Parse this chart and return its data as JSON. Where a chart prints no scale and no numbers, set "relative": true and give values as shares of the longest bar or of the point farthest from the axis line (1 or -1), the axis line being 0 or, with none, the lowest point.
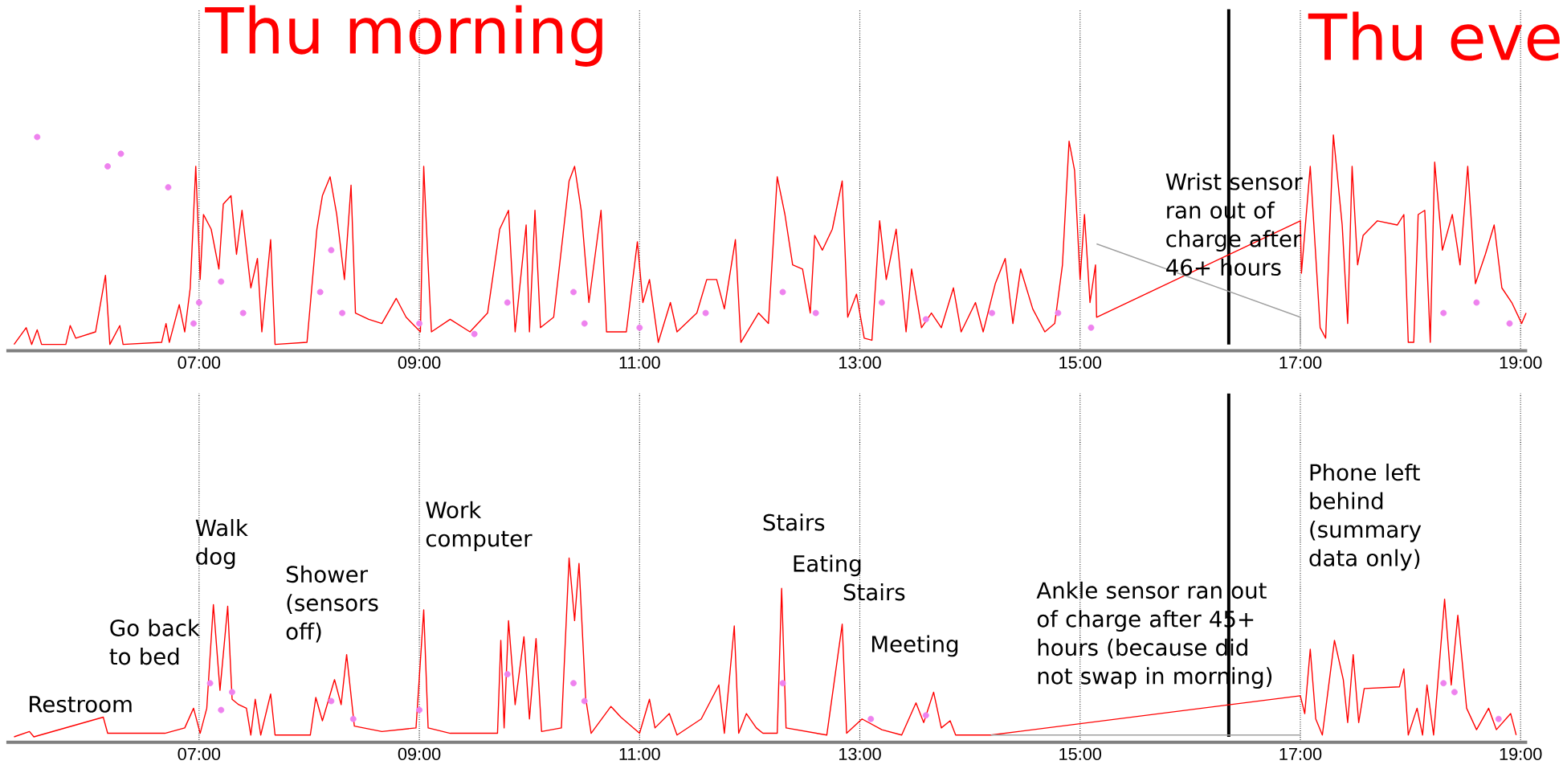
{
  "chart_data": [
    {
      "type": "line",
      "relative": true,
      "title": "Thu morning",
      "xlim": [
        5.25,
        19.06
      ],
      "grid": "x",
      "xticks": [
        {
          "value": 7,
          "label": "07:00"
        },
        {
          "value": 9,
          "label": "09:00"
        },
        {
          "value": 11,
          "label": "11:00"
        },
        {
          "value": 13,
          "label": "13:00"
        },
        {
          "value": 15,
          "label": "15:00"
        },
        {
          "value": 17,
          "label": "17:00"
        },
        {
          "value": 19,
          "label": "19:00"
        }
      ],
      "ref_lines": [
        {
          "axis": "x",
          "value": 16.35,
          "color": "#000000"
        }
      ],
      "annotations": [
        "Thu eve",
        "Wrist sensor ran out of charge after 46+ hours"
      ],
      "series": [
        {
          "type": "line",
          "color": "#ff0000",
          "x": [
            5.32,
            5.43,
            5.48,
            5.53,
            5.57,
            5.79,
            5.83,
            5.88,
            6.06,
            6.15,
            6.19,
            6.28,
            6.31,
            6.66,
            6.7,
            6.73,
            6.82,
            6.87,
            6.92,
            6.97,
            7.01,
            7.04,
            7.11,
            7.18,
            7.22,
            7.29,
            7.34,
            7.39,
            7.47,
            7.53,
            7.57,
            7.65,
            7.69,
            7.98,
            8.07,
            8.12,
            8.19,
            8.25,
            8.32,
            8.38,
            8.42,
            8.54,
            8.66,
            8.79,
            8.88,
            9.01,
            9.04,
            9.08,
            9.11,
            9.28,
            9.46,
            9.62,
            9.73,
            9.81,
            9.87,
            9.97,
            10.0,
            10.05,
            10.1,
            10.22,
            10.36,
            10.41,
            10.47,
            10.54,
            10.65,
            10.7,
            10.88,
            10.98,
            11.03,
            11.09,
            11.17,
            11.28,
            11.34,
            11.52,
            11.61,
            11.7,
            11.77,
            11.87,
            11.92,
            12.08,
            12.17,
            12.25,
            12.32,
            12.39,
            12.48,
            12.55,
            12.59,
            12.66,
            12.75,
            12.84,
            12.89,
            12.97,
            13.04,
            13.11,
            13.18,
            13.24,
            13.33,
            13.42,
            13.47,
            13.56,
            13.65,
            13.74,
            13.85,
            13.92,
            14.05,
            14.12,
            14.23,
            14.32,
            14.39,
            14.46,
            14.57,
            14.68,
            14.77,
            14.84,
            14.9,
            14.95,
            15.0,
            15.04,
            15.09,
            15.14,
            15.15,
            17.0,
            17.01,
            17.09,
            17.18,
            17.23,
            17.3,
            17.38,
            17.43,
            17.47,
            17.52,
            17.57,
            17.7,
            17.88,
            17.94,
            17.98,
            18.03,
            18.07,
            18.13,
            18.18,
            18.22,
            18.29,
            18.38,
            18.45,
            18.52,
            18.59,
            18.68,
            18.76,
            18.83,
            18.92,
            19.01,
            19.05
          ],
          "values": [
            0.0,
            0.08,
            0.0,
            0.07,
            0.0,
            0.0,
            0.09,
            0.03,
            0.06,
            0.33,
            0.0,
            0.09,
            0.0,
            0.01,
            0.1,
            0.01,
            0.19,
            0.06,
            0.27,
            0.85,
            0.31,
            0.62,
            0.55,
            0.36,
            0.67,
            0.71,
            0.43,
            0.64,
            0.27,
            0.41,
            0.06,
            0.5,
            0.0,
            0.01,
            0.55,
            0.71,
            0.8,
            0.62,
            0.31,
            0.76,
            0.15,
            0.12,
            0.1,
            0.22,
            0.13,
            0.06,
            0.85,
            0.38,
            0.06,
            0.12,
            0.06,
            0.15,
            0.55,
            0.64,
            0.06,
            0.57,
            0.06,
            0.64,
            0.08,
            0.13,
            0.78,
            0.85,
            0.64,
            0.2,
            0.64,
            0.06,
            0.06,
            0.49,
            0.2,
            0.31,
            0.01,
            0.2,
            0.06,
            0.15,
            0.31,
            0.31,
            0.17,
            0.5,
            0.01,
            0.15,
            0.1,
            0.8,
            0.62,
            0.38,
            0.36,
            0.15,
            0.52,
            0.45,
            0.55,
            0.78,
            0.13,
            0.24,
            0.03,
            0.02,
            0.59,
            0.31,
            0.55,
            0.06,
            0.36,
            0.08,
            0.15,
            0.08,
            0.27,
            0.06,
            0.2,
            0.06,
            0.29,
            0.41,
            0.1,
            0.36,
            0.17,
            0.06,
            0.1,
            0.38,
            0.97,
            0.83,
            0.31,
            0.62,
            0.2,
            0.38,
            0.13,
            0.59,
            0.34,
            0.85,
            0.08,
            0.03,
            1.0,
            0.57,
            0.1,
            0.85,
            0.38,
            0.52,
            0.59,
            0.57,
            0.62,
            0.01,
            0.01,
            0.62,
            0.64,
            0.01,
            0.87,
            0.45,
            0.62,
            0.38,
            0.85,
            0.29,
            0.43,
            0.57,
            0.27,
            0.2,
            0.1,
            0.15
          ]
        },
        {
          "type": "line",
          "color": "#a0a0a0",
          "x": [
            15.15,
            17.0,
            17.0
          ],
          "values": [
            0.48,
            0.13,
            0.0
          ]
        },
        {
          "type": "scatter",
          "color": "#ee82ee",
          "marker": "circle",
          "x": [
            5.53,
            6.17,
            6.29,
            6.72,
            6.95,
            7.0,
            7.2,
            7.4,
            8.1,
            8.2,
            8.3,
            9.0,
            9.5,
            9.8,
            10.4,
            10.5,
            11.0,
            11.6,
            12.3,
            12.6,
            13.2,
            13.6,
            14.2,
            14.8,
            15.1,
            18.3,
            18.6,
            18.9
          ],
          "values": [
            0.99,
            0.85,
            0.91,
            0.75,
            0.1,
            0.2,
            0.3,
            0.15,
            0.25,
            0.45,
            0.15,
            0.1,
            0.05,
            0.2,
            0.25,
            0.1,
            0.08,
            0.15,
            0.25,
            0.15,
            0.2,
            0.12,
            0.15,
            0.15,
            0.08,
            0.15,
            0.2,
            0.1
          ]
        }
      ]
    },
    {
      "type": "line",
      "relative": true,
      "xlim": [
        5.25,
        19.06
      ],
      "grid": "x",
      "xticks": [
        {
          "value": 7,
          "label": "07:00"
        },
        {
          "value": 9,
          "label": "09:00"
        },
        {
          "value": 11,
          "label": "11:00"
        },
        {
          "value": 13,
          "label": "13:00"
        },
        {
          "value": 15,
          "label": "15:00"
        },
        {
          "value": 17,
          "label": "17:00"
        },
        {
          "value": 19,
          "label": "19:00"
        }
      ],
      "ref_lines": [
        {
          "axis": "x",
          "value": 16.35,
          "color": "#000000"
        }
      ],
      "annotations": [
        "Restroom",
        "Go back to bed",
        "Walk dog",
        "Shower (sensors off)",
        "Work computer",
        "Stairs",
        "Eating",
        "Stairs",
        "Meeting",
        "Ankle sensor ran out of charge after 45+ hours (because did not swap in morning)",
        "Phone left behind (summary data only)"
      ],
      "series": [
        {
          "type": "line",
          "color": "#ff0000",
          "x": [
            5.32,
            5.46,
            5.5,
            6.13,
            6.17,
            6.69,
            6.87,
            6.95,
            7.01,
            7.07,
            7.13,
            7.19,
            7.26,
            7.3,
            7.36,
            7.43,
            7.47,
            7.51,
            7.56,
            7.65,
            7.69,
            8.01,
            8.06,
            8.12,
            8.23,
            8.29,
            8.34,
            8.41,
            8.66,
            8.97,
            9.04,
            9.08,
            9.28,
            9.71,
            9.74,
            9.77,
            9.81,
            9.87,
            9.95,
            10.0,
            10.06,
            10.11,
            10.29,
            10.36,
            10.41,
            10.45,
            10.51,
            10.56,
            10.74,
            10.83,
            11.0,
            11.09,
            11.14,
            11.27,
            11.34,
            11.56,
            11.72,
            11.77,
            11.86,
            11.9,
            11.97,
            12.06,
            12.12,
            12.25,
            12.29,
            12.33,
            12.7,
            12.84,
            12.88,
            13.02,
            13.2,
            13.38,
            13.51,
            13.58,
            13.67,
            13.74,
            13.82,
            13.87,
            14.19,
            17.0,
            17.04,
            17.09,
            17.14,
            17.2,
            17.31,
            17.39,
            17.43,
            17.48,
            17.53,
            17.58,
            17.9,
            17.94,
            17.98,
            18.06,
            18.11,
            18.15,
            18.21,
            18.31,
            18.37,
            18.43,
            18.51,
            18.6,
            18.71,
            18.78,
            18.91,
            18.96
          ],
          "values": [
            0.0,
            0.03,
            0.0,
            0.11,
            0.02,
            0.02,
            0.05,
            0.16,
            0.02,
            0.16,
            0.74,
            0.26,
            0.73,
            0.21,
            0.18,
            0.16,
            0.01,
            0.21,
            0.01,
            0.24,
            0.01,
            0.01,
            0.22,
            0.09,
            0.32,
            0.18,
            0.46,
            0.06,
            0.03,
            0.05,
            0.71,
            0.05,
            0.02,
            0.02,
            0.54,
            0.05,
            0.65,
            0.18,
            0.56,
            0.1,
            0.55,
            0.03,
            0.05,
            1.0,
            0.65,
            0.97,
            0.22,
            0.02,
            0.17,
            0.11,
            0.02,
            0.21,
            0.05,
            0.13,
            0.01,
            0.1,
            0.29,
            0.02,
            0.62,
            0.02,
            0.13,
            0.05,
            0.02,
            0.02,
            0.83,
            0.05,
            0.01,
            0.63,
            0.02,
            0.1,
            0.04,
            0.01,
            0.19,
            0.08,
            0.25,
            0.05,
            0.09,
            0.01,
            0.01,
            0.23,
            0.13,
            0.49,
            0.1,
            0.01,
            0.54,
            0.32,
            0.08,
            0.46,
            0.08,
            0.27,
            0.28,
            0.38,
            0.01,
            0.16,
            0.01,
            0.29,
            0.01,
            0.77,
            0.29,
            0.68,
            0.16,
            0.04,
            0.16,
            0.04,
            0.13,
            0.01
          ]
        },
        {
          "type": "line",
          "color": "#a0a0a0",
          "x": [
            14.19,
            17.0
          ],
          "values": [
            0.01,
            0.01
          ]
        },
        {
          "type": "scatter",
          "color": "#ee82ee",
          "marker": "circle",
          "x": [
            7.1,
            7.2,
            7.3,
            8.2,
            8.4,
            9.0,
            9.8,
            10.4,
            10.5,
            12.3,
            13.1,
            13.6,
            18.3,
            18.4,
            18.8
          ],
          "values": [
            0.3,
            0.15,
            0.25,
            0.2,
            0.1,
            0.15,
            0.35,
            0.3,
            0.2,
            0.3,
            0.1,
            0.12,
            0.3,
            0.25,
            0.1
          ]
        }
      ]
    }
  ]
}
